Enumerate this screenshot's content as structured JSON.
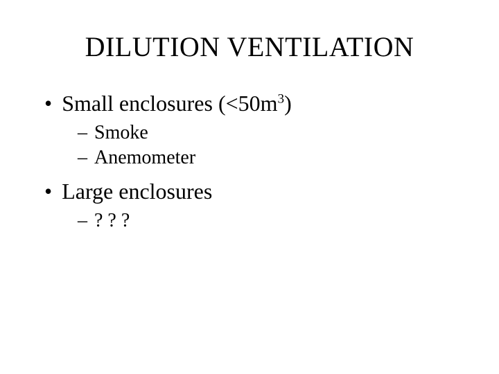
{
  "title": "DILUTION VENTILATION",
  "bullets": {
    "item1": {
      "text_pre": "Small enclosures (<50m",
      "sup": "3",
      "text_post": ")"
    },
    "item1_sub1": "Smoke",
    "item1_sub2": "Anemometer",
    "item2": "Large enclosures",
    "item2_sub1": "? ? ?"
  },
  "markers": {
    "l1": "•",
    "l2": "–"
  },
  "colors": {
    "background": "#ffffff",
    "text": "#000000"
  },
  "typography": {
    "title_fontsize": 40,
    "l1_fontsize": 32,
    "l2_fontsize": 28,
    "font_family": "Times New Roman"
  }
}
